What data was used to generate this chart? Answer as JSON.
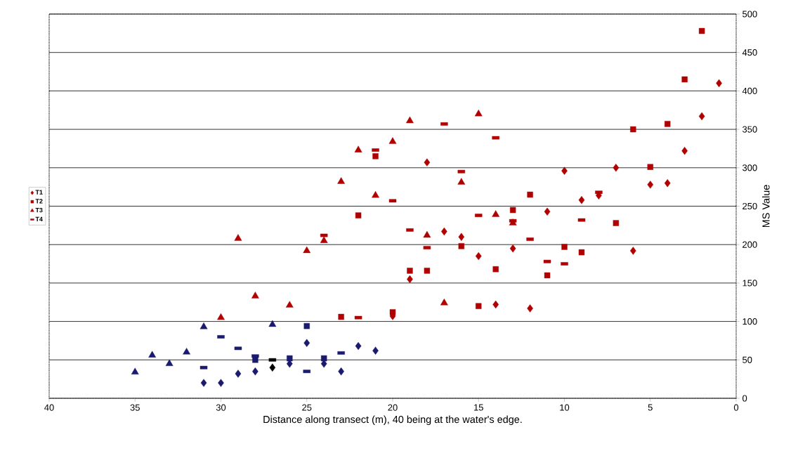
{
  "chart_data": {
    "type": "scatter",
    "xlabel": "Distance along transect (m), 40 being at the water's edge.",
    "ylabel": "MS Value",
    "xlim": [
      40,
      0
    ],
    "xticks": [
      40,
      35,
      30,
      25,
      20,
      15,
      10,
      5,
      0
    ],
    "ylim": [
      0,
      500
    ],
    "yticks": [
      0,
      50,
      100,
      150,
      200,
      250,
      300,
      350,
      400,
      450,
      500
    ],
    "grid": "y",
    "legend": "left",
    "series": [
      {
        "name": "T1",
        "marker": "diamond",
        "color": "#b00000",
        "x": [
          31,
          30,
          29,
          28,
          27,
          26,
          25,
          24,
          23,
          22,
          21,
          20,
          19,
          18,
          17,
          16,
          15,
          14,
          13,
          12,
          11,
          10,
          9,
          8,
          7,
          6,
          5,
          4,
          3,
          2,
          1
        ],
        "values": [
          20,
          20,
          32,
          35,
          40,
          45,
          72,
          45,
          35,
          68,
          62,
          107,
          155,
          307,
          217,
          210,
          185,
          122,
          195,
          117,
          243,
          296,
          258,
          264,
          300,
          192,
          278,
          280,
          322,
          367,
          410
        ],
        "colors": [
          "#1a1a6e",
          "#1a1a6e",
          "#1a1a6e",
          "#1a1a6e",
          "#000000",
          "#1a1a6e",
          "#1a1a6e",
          "#1a1a6e",
          "#1a1a6e",
          "#1a1a6e",
          "#1a1a6e",
          "#b00000",
          "#b00000",
          "#b00000",
          "#b00000",
          "#b00000",
          "#b00000",
          "#b00000",
          "#b00000",
          "#b00000",
          "#b00000",
          "#b00000",
          "#b00000",
          "#b00000",
          "#b00000",
          "#b00000",
          "#b00000",
          "#b00000",
          "#b00000",
          "#b00000",
          "#b00000"
        ]
      },
      {
        "name": "T2",
        "marker": "square",
        "color": "#b00000",
        "x": [
          28,
          26,
          25,
          24,
          23,
          22,
          21,
          20,
          19,
          18,
          16,
          15,
          14,
          13,
          12,
          11,
          10,
          9,
          7,
          6,
          5,
          4,
          3,
          2
        ],
        "values": [
          50,
          52,
          94,
          52,
          106,
          238,
          315,
          112,
          166,
          166,
          198,
          120,
          168,
          245,
          265,
          160,
          197,
          190,
          228,
          350,
          301,
          357,
          415,
          478
        ],
        "colors": [
          "#1a1a6e",
          "#1a1a6e",
          "#1a1a6e",
          "#1a1a6e",
          "#b00000",
          "#b00000",
          "#b00000",
          "#b00000",
          "#b00000",
          "#b00000",
          "#b00000",
          "#b00000",
          "#b00000",
          "#b00000",
          "#b00000",
          "#b00000",
          "#b00000",
          "#b00000",
          "#b00000",
          "#b00000",
          "#b00000",
          "#b00000",
          "#b00000",
          "#b00000"
        ]
      },
      {
        "name": "T3",
        "marker": "triangle",
        "color": "#b00000",
        "x": [
          35,
          34,
          33,
          32,
          31,
          27,
          30,
          29,
          28,
          26,
          25,
          24,
          23,
          22,
          21,
          20,
          19,
          18,
          17,
          16,
          15,
          14,
          13
        ],
        "values": [
          34,
          56,
          45,
          60,
          93,
          96,
          105,
          208,
          133,
          121,
          192,
          205,
          282,
          323,
          264,
          334,
          361,
          212,
          124,
          281,
          370,
          239,
          228
        ],
        "colors": [
          "#1a1a6e",
          "#1a1a6e",
          "#1a1a6e",
          "#1a1a6e",
          "#1a1a6e",
          "#1a1a6e",
          "#b00000",
          "#b00000",
          "#b00000",
          "#b00000",
          "#b00000",
          "#b00000",
          "#b00000",
          "#b00000",
          "#b00000",
          "#b00000",
          "#b00000",
          "#b00000",
          "#b00000",
          "#b00000",
          "#b00000",
          "#b00000",
          "#b00000"
        ]
      },
      {
        "name": "T4",
        "marker": "square",
        "color": "#b00000",
        "x": [
          31,
          30,
          29,
          28,
          27,
          25,
          23,
          24,
          22,
          21,
          20,
          19,
          18,
          17,
          16,
          15,
          14,
          13,
          12,
          11,
          10,
          9,
          8
        ],
        "values": [
          40,
          80,
          65,
          55,
          50,
          35,
          59,
          212,
          105,
          323,
          257,
          219,
          196,
          357,
          295,
          238,
          339,
          231,
          207,
          178,
          175,
          232,
          268
        ],
        "colors": [
          "#1a1a6e",
          "#1a1a6e",
          "#1a1a6e",
          "#1a1a6e",
          "#000000",
          "#1a1a6e",
          "#1a1a6e",
          "#b00000",
          "#b00000",
          "#b00000",
          "#b00000",
          "#b00000",
          "#b00000",
          "#b00000",
          "#b00000",
          "#b00000",
          "#b00000",
          "#b00000",
          "#b00000",
          "#b00000",
          "#b00000",
          "#b00000",
          "#b00000"
        ]
      }
    ]
  }
}
